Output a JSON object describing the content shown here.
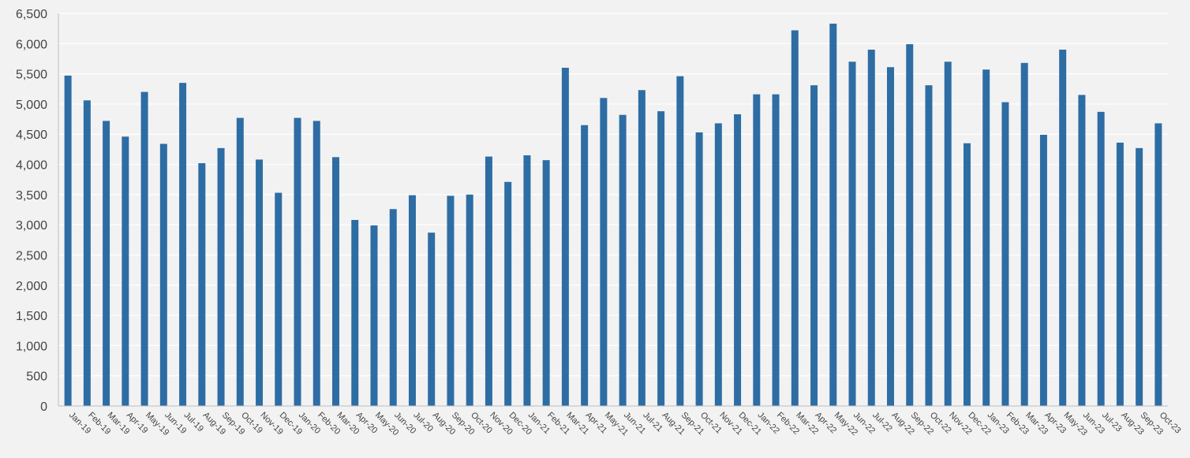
{
  "chart_data": {
    "type": "bar",
    "title": "",
    "xlabel": "",
    "ylabel": "",
    "ylim": [
      0,
      6500
    ],
    "yticks": [
      0,
      500,
      1000,
      1500,
      2000,
      2500,
      3000,
      3500,
      4000,
      4500,
      5000,
      5500,
      6000,
      6500
    ],
    "ytick_labels": [
      "0",
      "500",
      "1,000",
      "1,500",
      "2,000",
      "2,500",
      "3,000",
      "3,500",
      "4,000",
      "4,500",
      "5,000",
      "5,500",
      "6,000",
      "6,500"
    ],
    "grid": true,
    "bar_color": "#2e6da4",
    "categories": [
      "Jan-19",
      "Feb-19",
      "Mar-19",
      "Apr-19",
      "May-19",
      "Jun-19",
      "Jul-19",
      "Aug-19",
      "Sep-19",
      "Oct-19",
      "Nov-19",
      "Dec-19",
      "Jan-20",
      "Feb-20",
      "Mar-20",
      "Apr-20",
      "May-20",
      "Jun-20",
      "Jul-20",
      "Aug-20",
      "Sep-20",
      "Oct-20",
      "Nov-20",
      "Dec-20",
      "Jan-21",
      "Feb-21",
      "Mar-21",
      "Apr-21",
      "May-21",
      "Jun-21",
      "Jul-21",
      "Aug-21",
      "Sep-21",
      "Oct-21",
      "Nov-21",
      "Dec-21",
      "Jan-22",
      "Feb-22",
      "Mar-22",
      "Apr-22",
      "May-22",
      "Jun-22",
      "Jul-22",
      "Aug-22",
      "Sep-22",
      "Oct-22",
      "Nov-22",
      "Dec-22",
      "Jan-23",
      "Feb-23",
      "Mar-23",
      "Apr-23",
      "May-23",
      "Jun-23",
      "Jul-23",
      "Aug-23",
      "Sep-23",
      "Oct-23"
    ],
    "values": [
      5470,
      5060,
      4720,
      4460,
      5200,
      4340,
      5350,
      4020,
      4270,
      4770,
      4080,
      3530,
      4770,
      4720,
      4120,
      3080,
      2990,
      3260,
      3490,
      2870,
      3480,
      3500,
      4130,
      3710,
      4150,
      4070,
      5600,
      4650,
      5100,
      4820,
      5230,
      4880,
      5460,
      4530,
      4680,
      4830,
      5160,
      5160,
      6220,
      5310,
      6330,
      5700,
      5900,
      5610,
      5990,
      5310,
      5700,
      4350,
      5570,
      5030,
      5680,
      4490,
      5900,
      5150,
      4870,
      4360,
      4270,
      4680
    ]
  }
}
